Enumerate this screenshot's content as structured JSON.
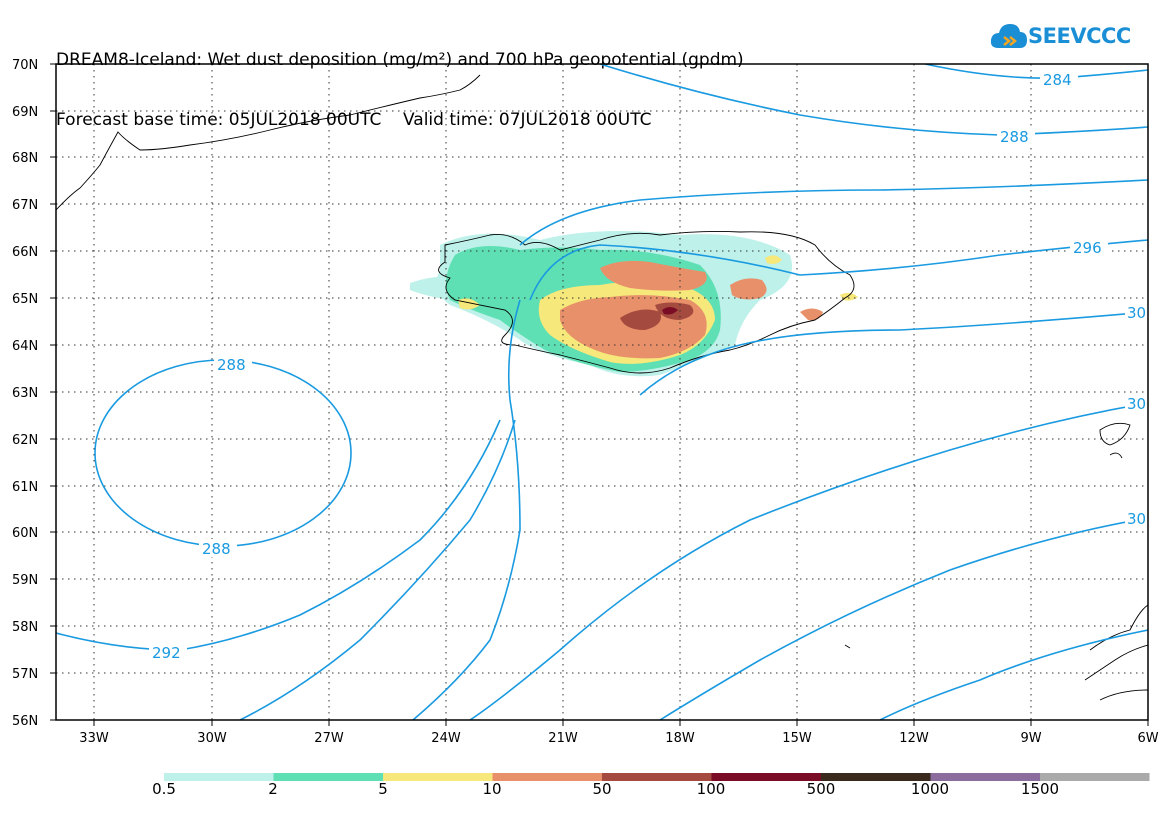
{
  "header": {
    "line1": "DREAM8-Iceland: Wet dust deposition (mg/m²) and 700 hPa geopotential (gpdm)",
    "line2": "Forecast base time: 05JUL2018 00UTC    Valid time: 07JUL2018 00UTC"
  },
  "logo": {
    "text": "SEEVCCC",
    "icon": "cloud-icon"
  },
  "axes": {
    "lat_labels": [
      "70N",
      "69N",
      "68N",
      "67N",
      "66N",
      "65N",
      "64N",
      "63N",
      "62N",
      "61N",
      "60N",
      "59N",
      "58N",
      "57N",
      "56N"
    ],
    "lon_labels": [
      "33W",
      "30W",
      "27W",
      "24W",
      "21W",
      "18W",
      "15W",
      "12W",
      "9W",
      "6W"
    ]
  },
  "isolines": [
    {
      "label": "284"
    },
    {
      "label": "288"
    },
    {
      "label": "296"
    },
    {
      "label": "30"
    },
    {
      "label": "30"
    },
    {
      "label": "30"
    },
    {
      "label": "288"
    },
    {
      "label": "288"
    },
    {
      "label": "292"
    }
  ],
  "legend": {
    "labels": [
      "0.5",
      "2",
      "5",
      "10",
      "50",
      "100",
      "500",
      "1000",
      "1500"
    ],
    "colors": [
      "#bdf1ea",
      "#5fe0b4",
      "#f6e87a",
      "#e8906a",
      "#a44a3e",
      "#7a0c26",
      "#3a2a1e",
      "#8b6c9c",
      "#aaaaaa"
    ]
  }
}
